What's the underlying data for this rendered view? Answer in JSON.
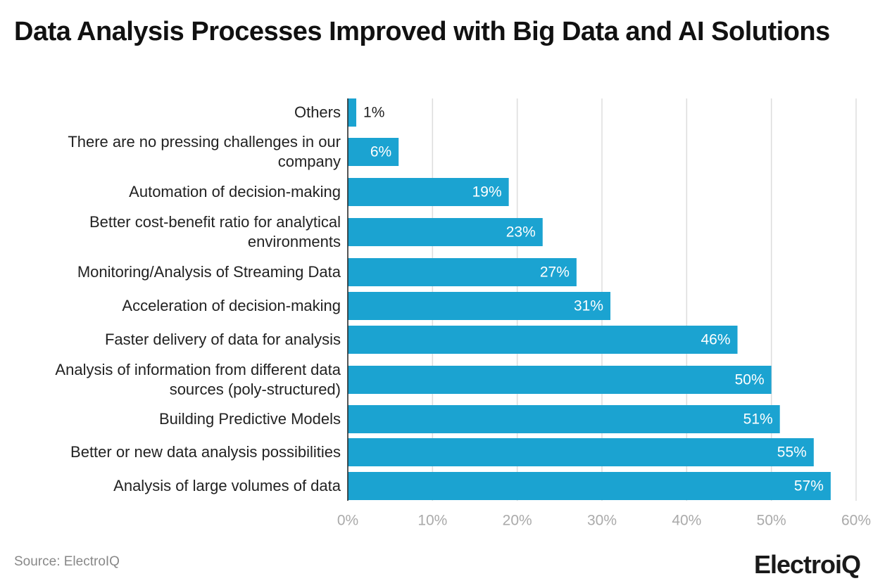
{
  "chart_data": {
    "type": "bar",
    "orientation": "horizontal",
    "title": "Data Analysis Processes Improved with Big Data and AI Solutions",
    "categories": [
      "Others",
      "There are no pressing challenges in our company",
      "Automation of decision-making",
      "Better cost-benefit ratio for analytical environments",
      "Monitoring/Analysis of Streaming Data",
      "Acceleration of decision-making",
      "Faster delivery of data for analysis",
      "Analysis of information from different data sources (poly-structured)",
      "Building Predictive Models",
      "Better or new data analysis possibilities",
      "Analysis of large volumes of data"
    ],
    "values": [
      1,
      6,
      19,
      23,
      27,
      31,
      46,
      50,
      51,
      55,
      57
    ],
    "value_labels": [
      "1%",
      "6%",
      "19%",
      "23%",
      "27%",
      "31%",
      "46%",
      "50%",
      "51%",
      "55%",
      "57%"
    ],
    "color": "#1ba3d1",
    "xlim": [
      0,
      60
    ],
    "xticks": [
      {
        "value": 0,
        "label": "0%"
      },
      {
        "value": 10,
        "label": "10%"
      },
      {
        "value": 20,
        "label": "20%"
      },
      {
        "value": 30,
        "label": "30%"
      },
      {
        "value": 40,
        "label": "40%"
      },
      {
        "value": 50,
        "label": "50%"
      },
      {
        "value": 60,
        "label": "60%"
      }
    ],
    "grid": true,
    "source": "Source: ElectroIQ",
    "logo": "ElectroiQ"
  }
}
